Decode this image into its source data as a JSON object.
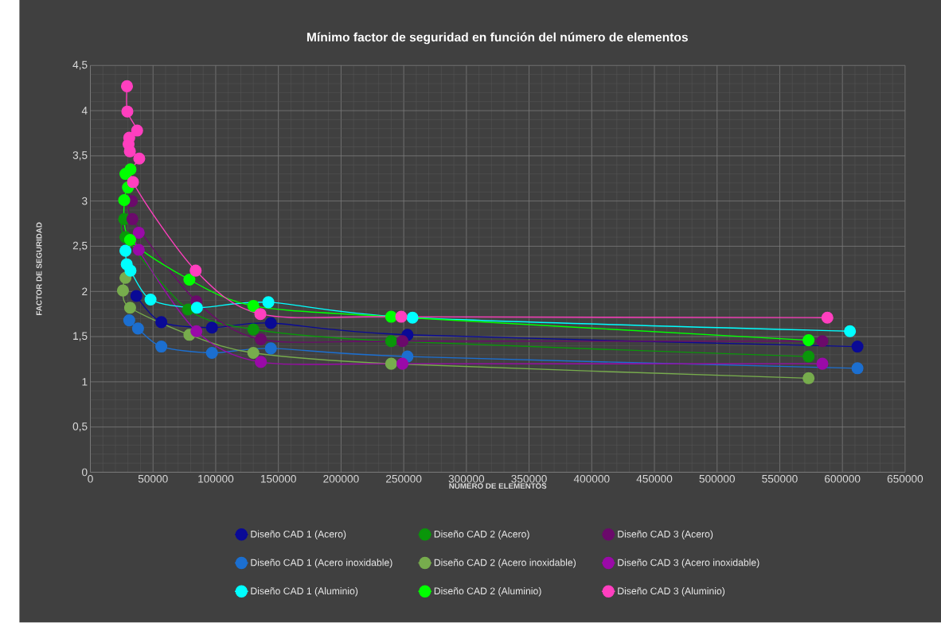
{
  "chart_data": {
    "type": "line",
    "title": "Mínimo factor de seguridad en función del número de elementos",
    "xlabel": "NÚMERO DE ELEMENTOS",
    "ylabel": "FACTOR DE SEGURIDAD",
    "xlim": [
      0,
      650000
    ],
    "xticks": [
      0,
      50000,
      100000,
      150000,
      200000,
      250000,
      300000,
      350000,
      400000,
      450000,
      500000,
      550000,
      600000,
      650000
    ],
    "ylim": [
      0,
      4.5
    ],
    "yticks": [
      0,
      {
        "value": 0.5,
        "label": "0,5"
      },
      1,
      {
        "value": 1.5,
        "label": "1,5"
      },
      2,
      {
        "value": 2.5,
        "label": "2,5"
      },
      3,
      {
        "value": 3.5,
        "label": "3,5"
      },
      4,
      {
        "value": 4.5,
        "label": "4,5"
      }
    ],
    "grid": true,
    "legend": "bottom",
    "marker": "circle",
    "line_style": "solid",
    "series": [
      {
        "name": "Diseño CAD 1 (Acero)",
        "color": "#0a0a96",
        "x": [
          36700,
          56600,
          97000,
          144000,
          253000,
          612000
        ],
        "values": [
          1.95,
          1.66,
          1.6,
          1.65,
          1.52,
          1.39
        ]
      },
      {
        "name": "Diseño CAD 2 (Acero)",
        "color": "#0a960a",
        "x": [
          27000,
          28000,
          78000,
          130000,
          240000,
          573000
        ],
        "values": [
          2.8,
          2.6,
          1.8,
          1.58,
          1.45,
          1.28
        ]
      },
      {
        "name": "Diseño CAD 3 (Acero)",
        "color": "#6b0a6b",
        "x": [
          33000,
          33500,
          84600,
          136000,
          249000,
          584000
        ],
        "values": [
          3.0,
          2.8,
          1.89,
          1.47,
          1.45,
          1.45
        ]
      },
      {
        "name": "Diseño CAD 1 (Acero inoxidable)",
        "color": "#1c6fd0",
        "x": [
          31000,
          38000,
          56600,
          97000,
          144000,
          253000,
          612000
        ],
        "values": [
          1.68,
          1.59,
          1.39,
          1.32,
          1.37,
          1.28,
          1.15
        ]
      },
      {
        "name": "Diseño CAD 2 (Acero inoxidable)",
        "color": "#77ac4d",
        "x": [
          28000,
          26000,
          31700,
          79000,
          130000,
          240000,
          573000
        ],
        "values": [
          2.15,
          2.01,
          1.82,
          1.52,
          1.32,
          1.2,
          1.04
        ]
      },
      {
        "name": "Diseño CAD 3 (Acero inoxidable)",
        "color": "#9a0aa8",
        "x": [
          38600,
          38600,
          84600,
          136000,
          249000,
          584000
        ],
        "values": [
          2.65,
          2.46,
          1.56,
          1.22,
          1.2,
          1.2
        ]
      },
      {
        "name": "Diseño CAD 1 (Aluminio)",
        "color": "#00ffff",
        "x": [
          28000,
          29000,
          32000,
          48000,
          85000,
          142000,
          257000,
          606000
        ],
        "values": [
          2.45,
          2.3,
          2.23,
          1.91,
          1.82,
          1.88,
          1.71,
          1.56
        ]
      },
      {
        "name": "Diseño CAD 2 (Aluminio)",
        "color": "#00ff00",
        "x": [
          28000,
          32000,
          30000,
          27000,
          31700,
          79000,
          130000,
          240000,
          573000
        ],
        "values": [
          3.3,
          3.35,
          3.15,
          3.01,
          2.57,
          2.13,
          1.84,
          1.72,
          1.46
        ]
      },
      {
        "name": "Diseño CAD 3 (Aluminio)",
        "color": "#ff3fbf",
        "x": [
          29200,
          29500,
          37300,
          31000,
          30500,
          31500,
          39000,
          34000,
          84000,
          135600,
          248000,
          588000
        ],
        "values": [
          4.27,
          3.99,
          3.78,
          3.7,
          3.63,
          3.55,
          3.47,
          3.21,
          2.23,
          1.75,
          1.72,
          1.71
        ]
      }
    ]
  }
}
